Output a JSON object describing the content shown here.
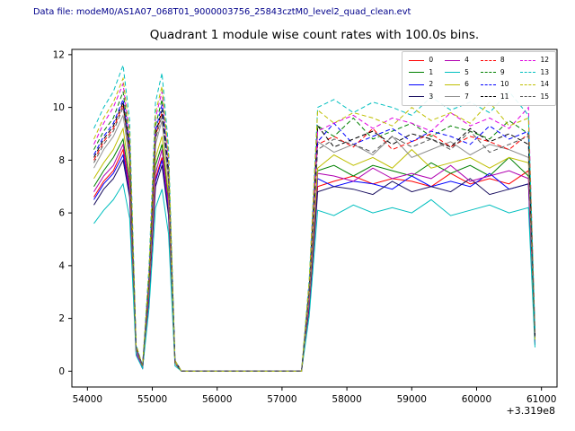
{
  "header": {
    "data_file_label": "Data file: modeM0/AS1A07_068T01_9000003756_25843cztM0_level2_quad_clean.evt"
  },
  "chart_data": {
    "type": "line",
    "title": "Quadrant 1 module wise count rates with 100.0s bins.",
    "xlabel": "",
    "ylabel": "",
    "x_offset_label": "+3.319e8",
    "xlim": [
      53760,
      61240
    ],
    "ylim": [
      -0.6,
      12.2
    ],
    "xticks": [
      54000,
      55000,
      56000,
      57000,
      58000,
      59000,
      60000,
      61000
    ],
    "yticks": [
      0,
      2,
      4,
      6,
      8,
      10,
      12
    ],
    "grid": false,
    "legend_position": "upper right",
    "legend_columns": 4,
    "x": [
      54100,
      54250,
      54400,
      54550,
      54650,
      54750,
      54850,
      54950,
      55050,
      55150,
      55250,
      55350,
      55450,
      56000,
      56700,
      57300,
      57420,
      57550,
      57800,
      58100,
      58400,
      58700,
      59000,
      59300,
      59600,
      59900,
      60200,
      60500,
      60800,
      60900
    ],
    "series": [
      {
        "name": "0",
        "color": "#ff0000",
        "dashed": false,
        "values": [
          6.6,
          7.2,
          7.6,
          8.4,
          6.8,
          0.7,
          0.1,
          2.9,
          7.3,
          8.1,
          6.1,
          0.3,
          0.0,
          0.0,
          0.0,
          0.0,
          2.5,
          7.0,
          7.2,
          7.4,
          7.1,
          7.3,
          7.2,
          7.0,
          7.5,
          7.1,
          7.3,
          7.1,
          7.6,
          1.1
        ]
      },
      {
        "name": "1",
        "color": "#008000",
        "dashed": false,
        "values": [
          7.0,
          7.6,
          8.1,
          8.8,
          7.2,
          0.8,
          0.2,
          3.0,
          7.8,
          8.6,
          6.5,
          0.3,
          0.0,
          0.0,
          0.0,
          0.0,
          2.7,
          7.6,
          7.8,
          7.4,
          7.8,
          7.6,
          7.4,
          7.9,
          7.5,
          7.8,
          7.4,
          8.1,
          7.4,
          1.1
        ]
      },
      {
        "name": "2",
        "color": "#0000ff",
        "dashed": false,
        "values": [
          6.5,
          7.1,
          7.5,
          8.2,
          6.7,
          0.7,
          0.1,
          2.8,
          7.2,
          8.0,
          6.0,
          0.3,
          0.0,
          0.0,
          0.0,
          0.0,
          2.5,
          7.3,
          7.0,
          7.2,
          7.1,
          6.9,
          7.4,
          7.0,
          7.2,
          7.0,
          7.5,
          6.9,
          7.1,
          1.1
        ]
      },
      {
        "name": "3",
        "color": "#1a1060",
        "dashed": false,
        "values": [
          6.3,
          6.9,
          7.3,
          8.0,
          6.6,
          0.7,
          0.1,
          2.8,
          7.0,
          7.8,
          5.9,
          0.3,
          0.0,
          0.0,
          0.0,
          0.0,
          2.4,
          6.8,
          7.0,
          6.9,
          6.7,
          7.2,
          6.8,
          7.0,
          6.8,
          7.3,
          6.7,
          6.9,
          7.1,
          1.0
        ]
      },
      {
        "name": "4",
        "color": "#b000b0",
        "dashed": false,
        "values": [
          6.8,
          7.4,
          7.8,
          8.6,
          7.0,
          0.7,
          0.1,
          3.0,
          7.5,
          8.4,
          6.3,
          0.3,
          0.0,
          0.0,
          0.0,
          0.0,
          2.6,
          7.5,
          7.4,
          7.2,
          7.7,
          7.3,
          7.5,
          7.3,
          7.8,
          7.2,
          7.4,
          7.6,
          7.3,
          1.1
        ]
      },
      {
        "name": "5",
        "color": "#00bfbf",
        "dashed": false,
        "values": [
          5.6,
          6.1,
          6.5,
          7.1,
          5.8,
          0.6,
          0.1,
          2.4,
          6.2,
          6.9,
          5.2,
          0.2,
          0.0,
          0.0,
          0.0,
          0.0,
          2.1,
          6.1,
          5.9,
          6.3,
          6.0,
          6.2,
          6.0,
          6.5,
          5.9,
          6.1,
          6.3,
          6.0,
          6.2,
          0.9
        ]
      },
      {
        "name": "6",
        "color": "#bfbf00",
        "dashed": false,
        "values": [
          7.3,
          7.9,
          8.4,
          9.2,
          7.5,
          0.8,
          0.2,
          3.2,
          8.1,
          8.9,
          6.7,
          0.3,
          0.0,
          0.0,
          0.0,
          0.0,
          2.8,
          7.7,
          8.2,
          7.8,
          8.1,
          7.7,
          8.4,
          7.7,
          7.9,
          8.1,
          7.7,
          8.1,
          7.9,
          1.2
        ]
      },
      {
        "name": "7",
        "color": "#909090",
        "dashed": false,
        "values": [
          7.7,
          8.4,
          8.9,
          9.7,
          8.0,
          0.8,
          0.2,
          3.4,
          8.6,
          9.5,
          7.1,
          0.3,
          0.0,
          0.0,
          0.0,
          0.0,
          2.9,
          8.7,
          8.3,
          8.6,
          8.2,
          8.9,
          8.1,
          8.4,
          8.7,
          8.2,
          8.6,
          8.4,
          8.1,
          1.3
        ]
      },
      {
        "name": "8",
        "color": "#ff0000",
        "dashed": true,
        "values": [
          8.0,
          8.7,
          9.2,
          10.1,
          8.3,
          0.9,
          0.2,
          3.5,
          8.9,
          9.8,
          7.4,
          0.3,
          0.0,
          0.0,
          0.0,
          0.0,
          3.0,
          8.6,
          8.9,
          8.5,
          9.2,
          8.4,
          8.7,
          9.0,
          8.5,
          8.9,
          8.7,
          8.4,
          9.0,
          1.3
        ]
      },
      {
        "name": "9",
        "color": "#008000",
        "dashed": true,
        "values": [
          8.4,
          9.1,
          9.6,
          10.6,
          8.6,
          0.9,
          0.2,
          3.6,
          9.3,
          10.3,
          7.7,
          0.4,
          0.0,
          0.0,
          0.0,
          0.0,
          3.2,
          9.3,
          8.9,
          9.6,
          8.8,
          9.1,
          9.4,
          8.9,
          9.3,
          9.1,
          8.8,
          9.5,
          9.0,
          1.4
        ]
      },
      {
        "name": "10",
        "color": "#0000ff",
        "dashed": true,
        "values": [
          8.2,
          8.9,
          9.4,
          10.3,
          8.5,
          0.9,
          0.2,
          3.6,
          9.1,
          10.1,
          7.6,
          0.4,
          0.0,
          0.0,
          0.0,
          0.0,
          3.1,
          8.7,
          9.4,
          8.6,
          8.9,
          9.2,
          8.7,
          9.1,
          8.9,
          8.6,
          9.3,
          8.8,
          9.1,
          1.3
        ]
      },
      {
        "name": "11",
        "color": "#000000",
        "dashed": true,
        "values": [
          8.1,
          8.8,
          9.3,
          10.2,
          8.4,
          0.9,
          0.2,
          3.5,
          9.0,
          9.9,
          7.5,
          0.4,
          0.0,
          0.0,
          0.0,
          0.0,
          3.1,
          9.3,
          8.5,
          8.8,
          9.1,
          8.6,
          9.0,
          8.8,
          8.5,
          9.2,
          8.7,
          9.0,
          8.6,
          1.3
        ]
      },
      {
        "name": "12",
        "color": "#e000e0",
        "dashed": true,
        "values": [
          8.6,
          9.4,
          10.0,
          10.9,
          8.9,
          0.9,
          0.2,
          3.8,
          9.6,
          10.6,
          8.0,
          0.4,
          0.0,
          0.0,
          0.0,
          0.0,
          3.3,
          9.1,
          9.4,
          9.7,
          9.2,
          9.6,
          9.4,
          9.1,
          9.8,
          9.3,
          9.6,
          9.2,
          10.0,
          1.4
        ]
      },
      {
        "name": "13",
        "color": "#00bfbf",
        "dashed": true,
        "values": [
          9.2,
          10.0,
          10.6,
          11.6,
          9.5,
          1.0,
          0.2,
          4.0,
          10.2,
          11.3,
          8.5,
          0.4,
          0.0,
          0.0,
          0.0,
          0.0,
          3.5,
          10.0,
          10.3,
          9.8,
          10.2,
          10.0,
          9.7,
          10.4,
          9.9,
          10.2,
          9.8,
          10.6,
          9.7,
          1.5
        ]
      },
      {
        "name": "14",
        "color": "#bfbf00",
        "dashed": true,
        "values": [
          8.8,
          9.6,
          10.2,
          11.1,
          9.1,
          1.0,
          0.2,
          3.8,
          9.8,
          10.8,
          8.2,
          0.4,
          0.0,
          0.0,
          0.0,
          0.0,
          3.4,
          9.9,
          9.4,
          9.8,
          9.6,
          9.3,
          10.0,
          9.5,
          9.8,
          9.4,
          10.2,
          9.3,
          9.6,
          1.4
        ]
      },
      {
        "name": "15",
        "color": "#555555",
        "dashed": true,
        "values": [
          7.9,
          8.6,
          9.1,
          10.0,
          8.2,
          0.9,
          0.2,
          3.4,
          8.8,
          9.7,
          7.3,
          0.3,
          0.0,
          0.0,
          0.0,
          0.0,
          3.0,
          8.4,
          8.8,
          8.6,
          8.3,
          8.9,
          8.5,
          8.8,
          8.4,
          9.1,
          8.3,
          8.6,
          8.9,
          1.3
        ]
      }
    ]
  }
}
